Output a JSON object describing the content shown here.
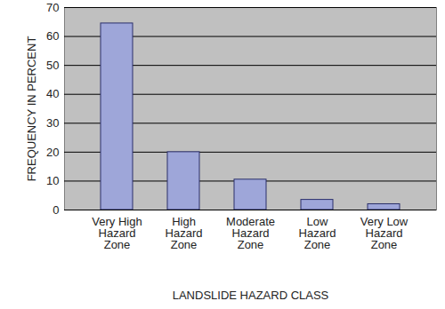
{
  "chart_data": {
    "type": "bar",
    "categories": [
      "Very High\nHazard\nZone",
      "High\nHazard\nZone",
      "Moderate\nHazard\nZone",
      "Low\nHazard\nZone",
      "Very Low\nHazard\nZone"
    ],
    "values": [
      64.5,
      20,
      10.5,
      3.5,
      2
    ],
    "color": "#9ea6d9",
    "x_label": "LANDSLIDE HAZARD CLASS",
    "y_label": "FREQUENCY IN PERCENT",
    "ylim": [
      0,
      70
    ],
    "yticks": [
      0,
      10,
      20,
      30,
      40,
      50,
      60,
      70
    ],
    "grid": true
  }
}
